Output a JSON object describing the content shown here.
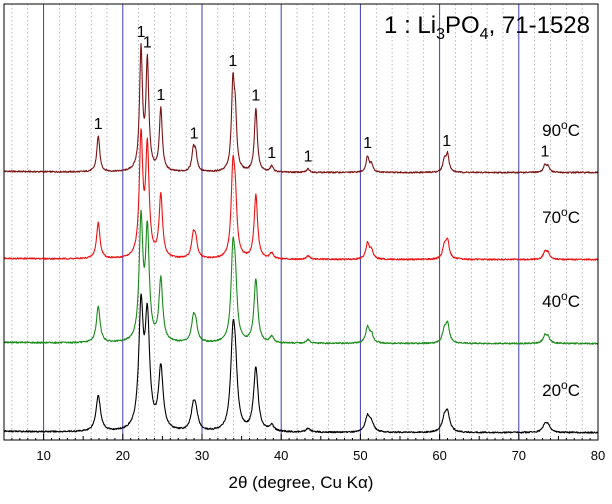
{
  "chart_data": {
    "type": "line",
    "xlabel": "2θ (degree, Cu Kα)",
    "xlim": [
      5,
      80
    ],
    "x_ticks": [
      10,
      20,
      30,
      40,
      50,
      60,
      70,
      80
    ],
    "x_tick_labels": [
      "10",
      "20",
      "30",
      "40",
      "50",
      "60",
      "70",
      "80"
    ],
    "major_gridlines_x": [
      10,
      20,
      30,
      40,
      50,
      60,
      70
    ],
    "minor_gridline_step": 2,
    "legend_text": {
      "main": "1 : Li",
      "sub1": "3",
      "mid": "PO",
      "sub2": "4",
      "tail": ", 71-1528"
    },
    "peak_marker_text": "1",
    "peak_markers": [
      16.9,
      22.3,
      23.1,
      24.8,
      29.0,
      33.9,
      36.8,
      38.8,
      43.4,
      50.9,
      60.9,
      73.3
    ],
    "peaks": [
      {
        "x": 16.9,
        "h": 0.3
      },
      {
        "x": 22.3,
        "h": 1.0
      },
      {
        "x": 23.1,
        "h": 0.9
      },
      {
        "x": 24.8,
        "h": 0.52
      },
      {
        "x": 28.9,
        "h": 0.17
      },
      {
        "x": 29.2,
        "h": 0.14
      },
      {
        "x": 33.9,
        "h": 0.68
      },
      {
        "x": 34.2,
        "h": 0.4
      },
      {
        "x": 36.8,
        "h": 0.53
      },
      {
        "x": 38.8,
        "h": 0.05
      },
      {
        "x": 43.4,
        "h": 0.03
      },
      {
        "x": 50.9,
        "h": 0.13
      },
      {
        "x": 51.4,
        "h": 0.07
      },
      {
        "x": 60.6,
        "h": 0.1
      },
      {
        "x": 61.0,
        "h": 0.15
      },
      {
        "x": 73.3,
        "h": 0.06
      },
      {
        "x": 73.7,
        "h": 0.05
      }
    ],
    "series": [
      {
        "name": "90",
        "unit": "oC",
        "color": "#7a1414",
        "width": 0.22
      },
      {
        "name": "70",
        "unit": "oC",
        "color": "#ee1111",
        "width": 0.26
      },
      {
        "name": "40",
        "unit": "oC",
        "color": "#1b8a1b",
        "width": 0.28
      },
      {
        "name": "20",
        "unit": "oC",
        "color": "#000000",
        "width": 0.34
      }
    ]
  }
}
